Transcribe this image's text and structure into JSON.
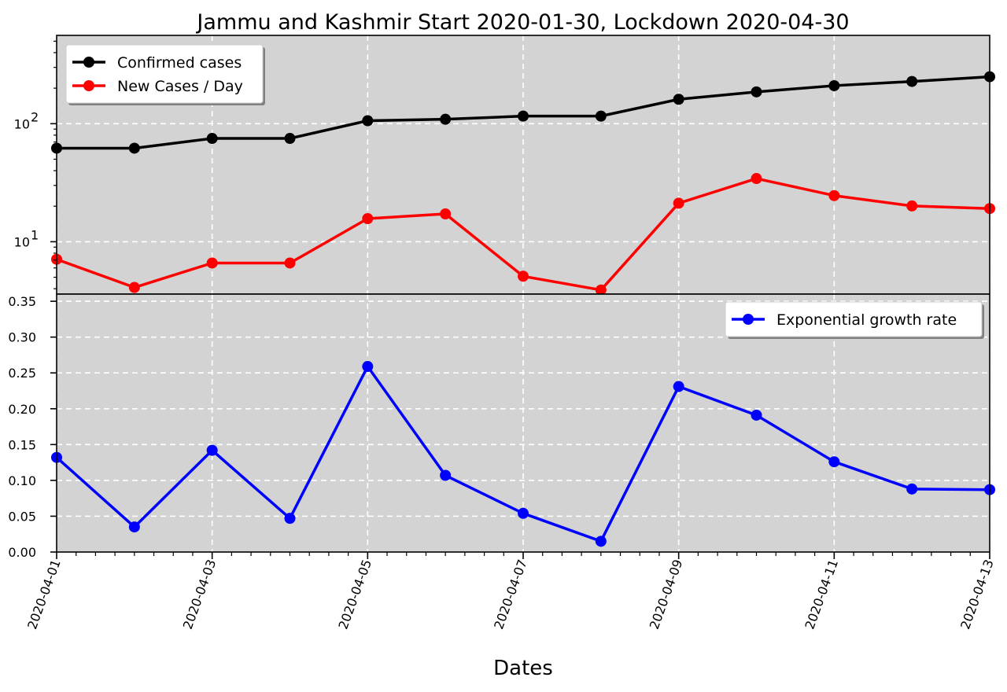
{
  "chart_data": [
    {
      "type": "line",
      "title": "Jammu and Kashmir Start 2020-01-30, Lockdown 2020-04-30",
      "yscale": "log",
      "grid": true,
      "legend_position": "top-left",
      "x": [
        "2020-04-01",
        "2020-04-02",
        "2020-04-03",
        "2020-04-04",
        "2020-04-05",
        "2020-04-06",
        "2020-04-07",
        "2020-04-08",
        "2020-04-09",
        "2020-04-10",
        "2020-04-11",
        "2020-04-12",
        "2020-04-13"
      ],
      "ylim": [
        3.6,
        560
      ],
      "y_ticks": [
        {
          "value": 10,
          "base": "10",
          "exp": "1"
        },
        {
          "value": 100,
          "base": "10",
          "exp": "2"
        }
      ],
      "series": [
        {
          "name": "Confirmed cases",
          "color": "#000000",
          "values": [
            62,
            62,
            75,
            75,
            106,
            109,
            116,
            116,
            161,
            186,
            210,
            228,
            250
          ]
        },
        {
          "name": "New Cases / Day",
          "color": "#ff0000",
          "values": [
            7.1,
            4.1,
            6.6,
            6.6,
            15.7,
            17.2,
            5.1,
            3.9,
            21.2,
            34.3,
            24.6,
            20.1,
            19.1
          ]
        }
      ]
    },
    {
      "type": "line",
      "xlabel": "Dates",
      "grid": true,
      "legend_position": "top-right",
      "x": [
        "2020-04-01",
        "2020-04-02",
        "2020-04-03",
        "2020-04-04",
        "2020-04-05",
        "2020-04-06",
        "2020-04-07",
        "2020-04-08",
        "2020-04-09",
        "2020-04-10",
        "2020-04-11",
        "2020-04-12",
        "2020-04-13"
      ],
      "x_tick_labels": [
        "2020-04-01",
        "2020-04-03",
        "2020-04-05",
        "2020-04-07",
        "2020-04-09",
        "2020-04-11",
        "2020-04-13"
      ],
      "ylim": [
        0,
        0.36
      ],
      "y_ticks": [
        "0.00",
        "0.05",
        "0.10",
        "0.15",
        "0.20",
        "0.25",
        "0.30",
        "0.35"
      ],
      "series": [
        {
          "name": "Exponential growth rate",
          "color": "#0000ff",
          "values": [
            0.132,
            0.035,
            0.142,
            0.047,
            0.259,
            0.107,
            0.054,
            0.015,
            0.231,
            0.191,
            0.126,
            0.088,
            0.087
          ]
        }
      ]
    }
  ]
}
